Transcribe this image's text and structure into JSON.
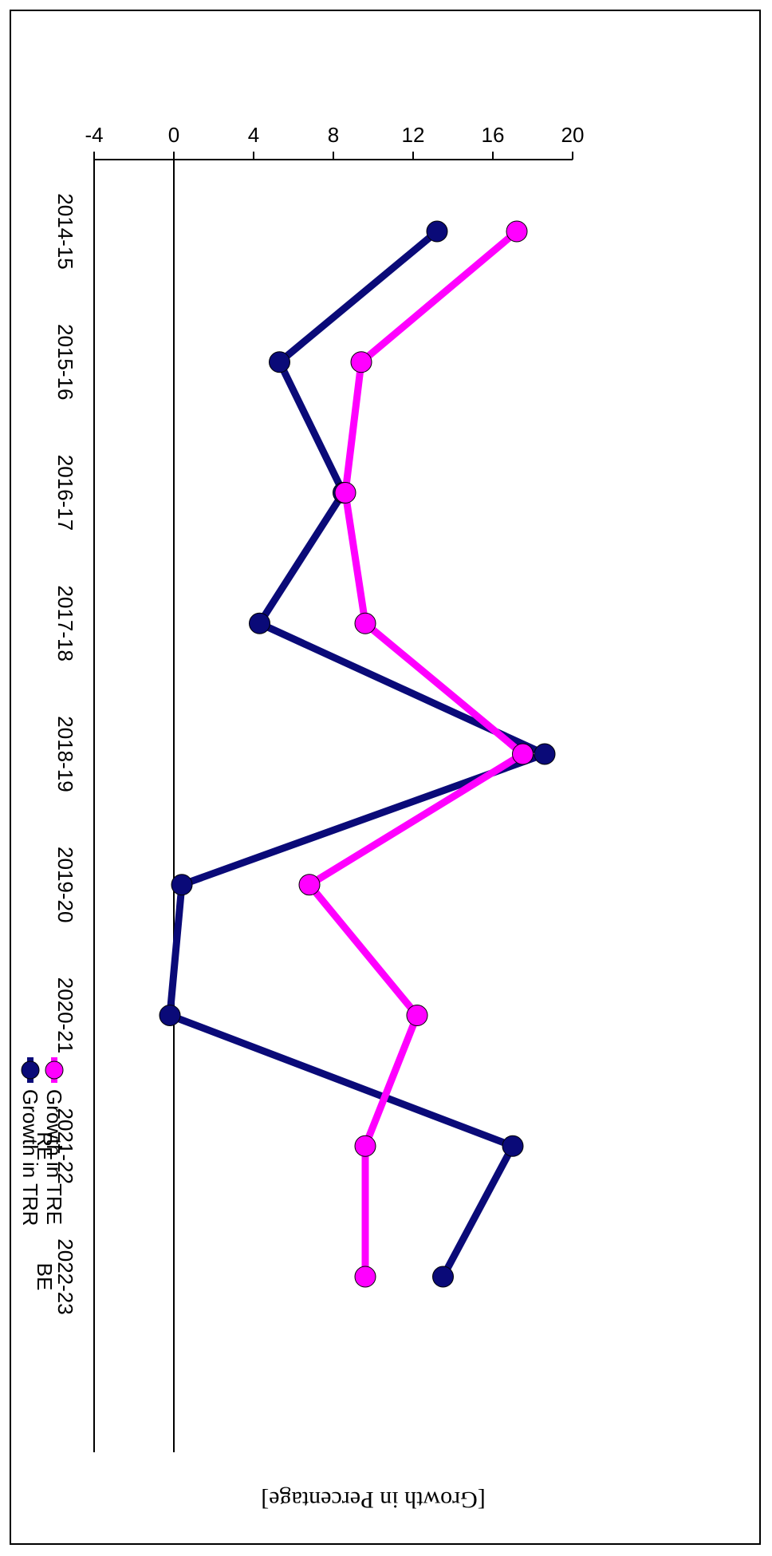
{
  "chart_data": {
    "type": "line",
    "title": "",
    "xlabel": "",
    "ylabel": "[Growth in Percentage]",
    "categories": [
      "2014-15",
      "2015-16",
      "2016-17",
      "2017-18",
      "2018-19",
      "2019-20",
      "2020-21",
      "2021-22 RE",
      "2022-23 BE"
    ],
    "category_lines": [
      [
        "2014-15"
      ],
      [
        "2015-16"
      ],
      [
        "2016-17"
      ],
      [
        "2017-18"
      ],
      [
        "2018-19"
      ],
      [
        "2019-20"
      ],
      [
        "2020-21"
      ],
      [
        "2021-22",
        "RE"
      ],
      [
        "2022-23",
        "BE"
      ]
    ],
    "y_ticks": [
      "20",
      "16",
      "12",
      "8",
      "4",
      "0",
      "-4"
    ],
    "ylim": [
      -4,
      20
    ],
    "reference_line": 0,
    "grid": false,
    "legend_position": "top-right",
    "series": [
      {
        "name": "Growth in TRR",
        "color": "#0a0a78",
        "values": [
          13.2,
          5.3,
          8.5,
          4.3,
          18.6,
          0.4,
          -0.2,
          17.0,
          13.5
        ]
      },
      {
        "name": "Growth in TRE",
        "color": "#ff00ff",
        "values": [
          17.2,
          9.4,
          8.6,
          9.6,
          17.5,
          6.8,
          12.2,
          9.6,
          9.6
        ]
      }
    ]
  }
}
